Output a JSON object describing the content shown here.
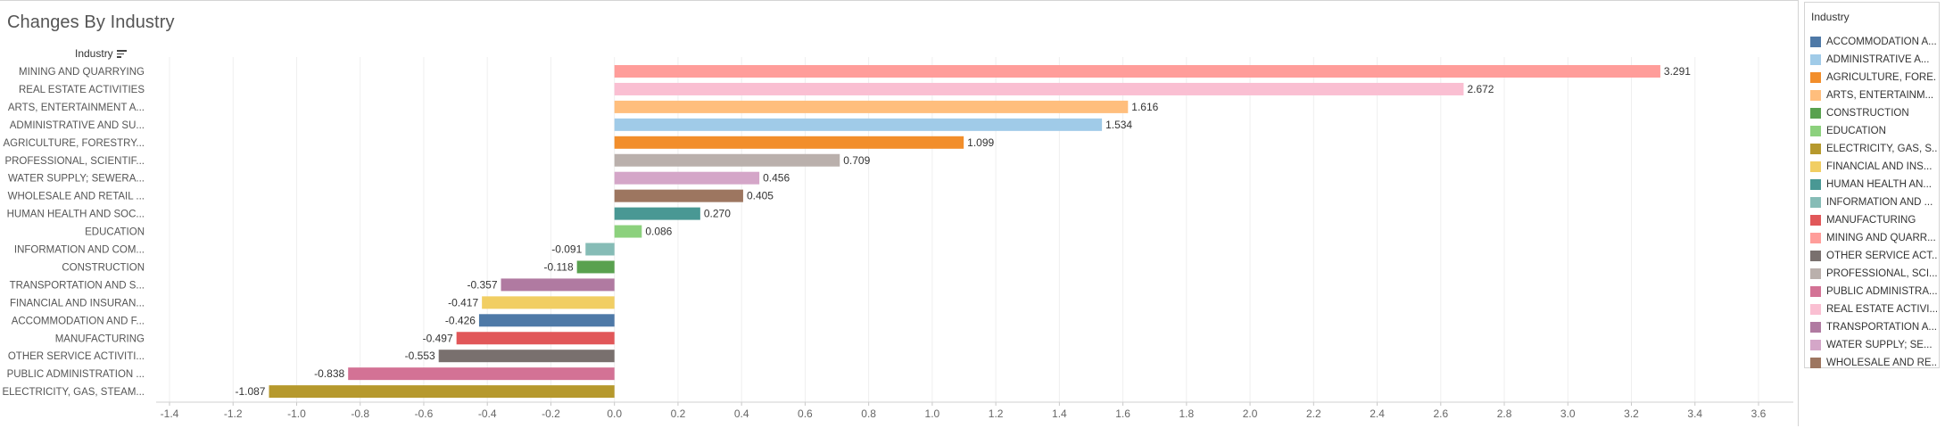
{
  "title": "Changes By Industry",
  "dimension_header": "Industry",
  "legend": {
    "title": "Industry",
    "items": [
      {
        "label": "ACCOMMODATION A...",
        "color": "#4e79a7"
      },
      {
        "label": "ADMINISTRATIVE A...",
        "color": "#a0cbe8"
      },
      {
        "label": "AGRICULTURE, FORE...",
        "color": "#f28e2b"
      },
      {
        "label": "ARTS, ENTERTAINM...",
        "color": "#ffbe7d"
      },
      {
        "label": "CONSTRUCTION",
        "color": "#59a14f"
      },
      {
        "label": "EDUCATION",
        "color": "#8cd17d"
      },
      {
        "label": "ELECTRICITY, GAS, S...",
        "color": "#b6992d"
      },
      {
        "label": "FINANCIAL AND INS...",
        "color": "#f1ce63"
      },
      {
        "label": "HUMAN HEALTH AN...",
        "color": "#499894"
      },
      {
        "label": "INFORMATION AND ...",
        "color": "#86bcb6"
      },
      {
        "label": "MANUFACTURING",
        "color": "#e15759"
      },
      {
        "label": "MINING AND QUARR...",
        "color": "#ff9d9a"
      },
      {
        "label": "OTHER SERVICE ACT...",
        "color": "#79706e"
      },
      {
        "label": "PROFESSIONAL, SCI...",
        "color": "#bab0ac"
      },
      {
        "label": "PUBLIC ADMINISTRA...",
        "color": "#d37295"
      },
      {
        "label": "REAL ESTATE ACTIVI...",
        "color": "#fabfd2"
      },
      {
        "label": "TRANSPORTATION A...",
        "color": "#b07aa1"
      },
      {
        "label": "WATER SUPPLY; SE...",
        "color": "#d4a6c8"
      },
      {
        "label": "WHOLESALE AND RE...",
        "color": "#9d7660"
      }
    ]
  },
  "chart_data": {
    "type": "bar",
    "orientation": "horizontal",
    "title": "Changes By Industry",
    "categories": [
      "MINING AND QUARRYING",
      "REAL ESTATE ACTIVITIES",
      "ARTS, ENTERTAINMENT A...",
      "ADMINISTRATIVE AND SU...",
      "AGRICULTURE, FORESTRY...",
      "PROFESSIONAL, SCIENTIF...",
      "WATER SUPPLY; SEWERA...",
      "WHOLESALE AND RETAIL ...",
      "HUMAN HEALTH AND SOC...",
      "EDUCATION",
      "INFORMATION AND COM...",
      "CONSTRUCTION",
      "TRANSPORTATION AND S...",
      "FINANCIAL AND INSURAN...",
      "ACCOMMODATION AND F...",
      "MANUFACTURING",
      "OTHER SERVICE ACTIVITI...",
      "PUBLIC ADMINISTRATION ...",
      "ELECTRICITY, GAS, STEAM..."
    ],
    "values": [
      3.291,
      2.672,
      1.616,
      1.534,
      1.099,
      0.709,
      0.456,
      0.405,
      0.27,
      0.086,
      -0.091,
      -0.118,
      -0.357,
      -0.417,
      -0.426,
      -0.497,
      -0.553,
      -0.838,
      -1.087
    ],
    "value_labels": [
      "3.291",
      "2.672",
      "1.616",
      "1.534",
      "1.099",
      "0.709",
      "0.456",
      "0.405",
      "0.270",
      "0.086",
      "-0.091",
      "-0.118",
      "-0.357",
      "-0.417",
      "-0.426",
      "-0.497",
      "-0.553",
      "-0.838",
      "-1.087"
    ],
    "colors": [
      "#ff9d9a",
      "#fabfd2",
      "#ffbe7d",
      "#a0cbe8",
      "#f28e2b",
      "#bab0ac",
      "#d4a6c8",
      "#9d7660",
      "#499894",
      "#8cd17d",
      "#86bcb6",
      "#59a14f",
      "#b07aa1",
      "#f1ce63",
      "#4e79a7",
      "#e15759",
      "#79706e",
      "#d37295",
      "#b6992d"
    ],
    "xlim": [
      -1.4,
      3.6
    ],
    "x_ticks": [
      -1.4,
      -1.2,
      -1.0,
      -0.8,
      -0.6,
      -0.4,
      -0.2,
      0.0,
      0.2,
      0.4,
      0.6,
      0.8,
      1.0,
      1.2,
      1.4,
      1.6,
      1.8,
      2.0,
      2.2,
      2.4,
      2.6,
      2.8,
      3.0,
      3.2,
      3.4,
      3.6
    ],
    "x_tick_labels": [
      "-1.4",
      "-1.2",
      "-1.0",
      "-0.8",
      "-0.6",
      "-0.4",
      "-0.2",
      "0.0",
      "0.2",
      "0.4",
      "0.6",
      "0.8",
      "1.0",
      "1.2",
      "1.4",
      "1.6",
      "1.8",
      "2.0",
      "2.2",
      "2.4",
      "2.6",
      "2.8",
      "3.0",
      "3.2",
      "3.4",
      "3.6"
    ],
    "grid": true,
    "legend_position": "right"
  }
}
